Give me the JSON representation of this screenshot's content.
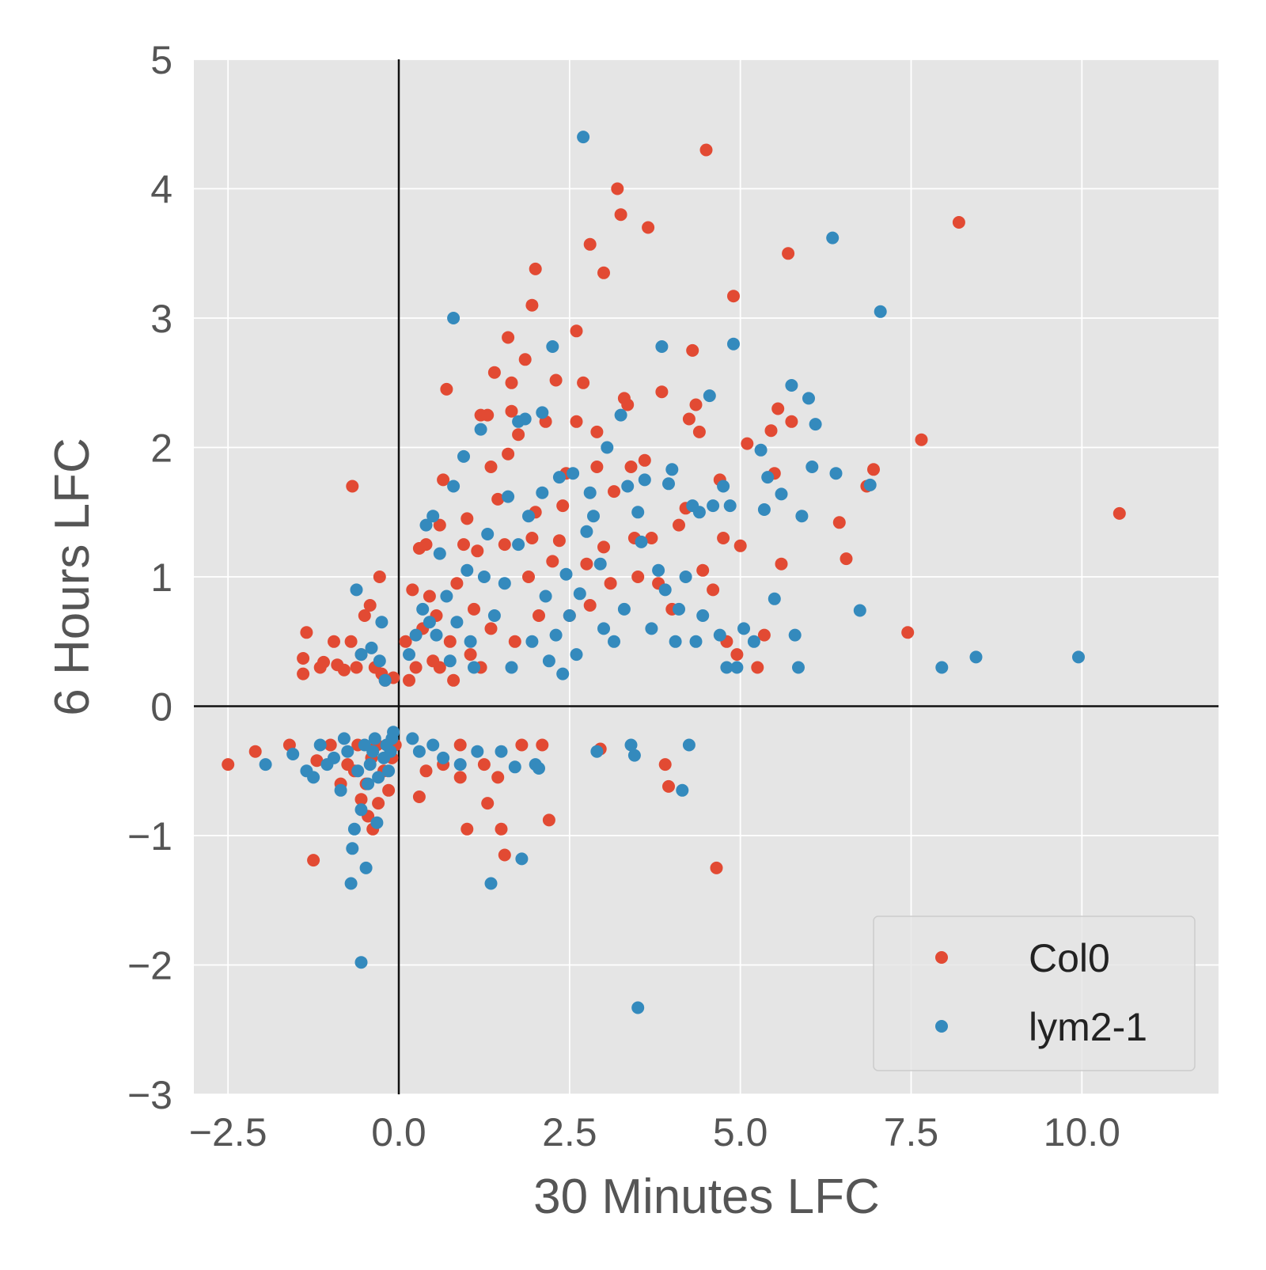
{
  "chart_data": {
    "type": "scatter",
    "xlabel": "30 Minutes LFC",
    "ylabel": "6 Hours LFC",
    "xlim": [
      -3.0,
      12.0
    ],
    "ylim": [
      -3.0,
      5.0
    ],
    "xticks": [
      -2.5,
      0.0,
      2.5,
      5.0,
      7.5,
      10.0
    ],
    "xtick_labels": [
      "−2.5",
      "0.0",
      "2.5",
      "5.0",
      "7.5",
      "10.0"
    ],
    "yticks": [
      -3,
      -2,
      -1,
      0,
      1,
      2,
      3,
      4,
      5
    ],
    "ytick_labels": [
      "−3",
      "−2",
      "−1",
      "0",
      "1",
      "2",
      "3",
      "4",
      "5"
    ],
    "reference_lines": {
      "x": 0,
      "y": 0
    },
    "grid": true,
    "legend_position": "lower-right",
    "series": [
      {
        "name": "Col0",
        "color": "#e24a33",
        "points": [
          [
            -2.5,
            -0.45
          ],
          [
            -2.1,
            -0.35
          ],
          [
            -1.6,
            -0.3
          ],
          [
            -1.4,
            0.25
          ],
          [
            -1.4,
            0.37
          ],
          [
            -1.35,
            0.57
          ],
          [
            -1.25,
            -1.19
          ],
          [
            -1.2,
            -0.42
          ],
          [
            -1.15,
            0.3
          ],
          [
            -1.1,
            0.34
          ],
          [
            -1.0,
            -0.3
          ],
          [
            -0.95,
            0.5
          ],
          [
            -0.9,
            0.32
          ],
          [
            -0.85,
            -0.6
          ],
          [
            -0.8,
            0.28
          ],
          [
            -0.75,
            -0.45
          ],
          [
            -0.7,
            0.5
          ],
          [
            -0.68,
            1.7
          ],
          [
            -0.65,
            -0.5
          ],
          [
            -0.62,
            0.3
          ],
          [
            -0.6,
            -0.3
          ],
          [
            -0.55,
            -0.72
          ],
          [
            -0.55,
            0.4
          ],
          [
            -0.5,
            0.7
          ],
          [
            -0.48,
            -0.6
          ],
          [
            -0.45,
            -0.85
          ],
          [
            -0.42,
            0.78
          ],
          [
            -0.4,
            -0.4
          ],
          [
            -0.38,
            -0.95
          ],
          [
            -0.35,
            0.3
          ],
          [
            -0.32,
            -0.3
          ],
          [
            -0.3,
            -0.75
          ],
          [
            -0.28,
            1.0
          ],
          [
            -0.25,
            0.25
          ],
          [
            -0.22,
            -0.5
          ],
          [
            -0.2,
            0.2
          ],
          [
            -0.15,
            -0.65
          ],
          [
            -0.1,
            -0.4
          ],
          [
            -0.08,
            0.22
          ],
          [
            -0.05,
            -0.3
          ],
          [
            0.1,
            0.5
          ],
          [
            0.15,
            0.2
          ],
          [
            0.2,
            0.9
          ],
          [
            0.25,
            0.3
          ],
          [
            0.3,
            1.22
          ],
          [
            0.3,
            -0.7
          ],
          [
            0.35,
            0.6
          ],
          [
            0.4,
            1.25
          ],
          [
            0.4,
            -0.5
          ],
          [
            0.45,
            0.85
          ],
          [
            0.5,
            0.35
          ],
          [
            0.55,
            0.7
          ],
          [
            0.6,
            1.4
          ],
          [
            0.6,
            0.3
          ],
          [
            0.65,
            1.75
          ],
          [
            0.65,
            -0.45
          ],
          [
            0.7,
            2.45
          ],
          [
            0.75,
            0.5
          ],
          [
            0.8,
            0.2
          ],
          [
            0.85,
            0.95
          ],
          [
            0.9,
            -0.55
          ],
          [
            0.9,
            -0.3
          ],
          [
            0.95,
            1.25
          ],
          [
            1.0,
            -0.95
          ],
          [
            1.0,
            1.45
          ],
          [
            1.05,
            0.4
          ],
          [
            1.1,
            0.75
          ],
          [
            1.15,
            1.2
          ],
          [
            1.2,
            2.25
          ],
          [
            1.2,
            0.3
          ],
          [
            1.25,
            -0.45
          ],
          [
            1.3,
            2.25
          ],
          [
            1.3,
            -0.75
          ],
          [
            1.35,
            1.85
          ],
          [
            1.35,
            0.6
          ],
          [
            1.4,
            2.58
          ],
          [
            1.45,
            1.6
          ],
          [
            1.45,
            -0.55
          ],
          [
            1.5,
            -0.95
          ],
          [
            1.55,
            1.25
          ],
          [
            1.55,
            -1.15
          ],
          [
            1.6,
            2.85
          ],
          [
            1.6,
            1.95
          ],
          [
            1.65,
            2.5
          ],
          [
            1.65,
            2.28
          ],
          [
            1.7,
            0.5
          ],
          [
            1.75,
            2.1
          ],
          [
            1.8,
            -0.3
          ],
          [
            1.85,
            2.68
          ],
          [
            1.9,
            1.0
          ],
          [
            1.95,
            3.1
          ],
          [
            1.95,
            1.3
          ],
          [
            2.0,
            3.38
          ],
          [
            2.0,
            1.5
          ],
          [
            2.05,
            0.7
          ],
          [
            2.1,
            -0.3
          ],
          [
            2.15,
            2.2
          ],
          [
            2.2,
            -0.88
          ],
          [
            2.25,
            1.12
          ],
          [
            2.3,
            2.52
          ],
          [
            2.35,
            1.28
          ],
          [
            2.4,
            1.55
          ],
          [
            2.45,
            1.8
          ],
          [
            2.5,
            0.7
          ],
          [
            2.6,
            2.9
          ],
          [
            2.6,
            2.2
          ],
          [
            2.7,
            2.5
          ],
          [
            2.75,
            1.1
          ],
          [
            2.8,
            3.57
          ],
          [
            2.8,
            0.78
          ],
          [
            2.9,
            1.85
          ],
          [
            2.9,
            2.12
          ],
          [
            2.95,
            -0.33
          ],
          [
            3.0,
            3.35
          ],
          [
            3.0,
            1.23
          ],
          [
            3.1,
            0.95
          ],
          [
            3.15,
            1.66
          ],
          [
            3.2,
            4.0
          ],
          [
            3.25,
            3.8
          ],
          [
            3.3,
            2.38
          ],
          [
            3.35,
            2.33
          ],
          [
            3.4,
            1.85
          ],
          [
            3.45,
            1.3
          ],
          [
            3.5,
            1.0
          ],
          [
            3.6,
            1.9
          ],
          [
            3.65,
            3.7
          ],
          [
            3.7,
            1.3
          ],
          [
            3.8,
            0.95
          ],
          [
            3.85,
            2.43
          ],
          [
            3.9,
            -0.45
          ],
          [
            3.95,
            -0.62
          ],
          [
            4.0,
            0.75
          ],
          [
            4.1,
            1.4
          ],
          [
            4.2,
            1.53
          ],
          [
            4.25,
            2.22
          ],
          [
            4.3,
            2.75
          ],
          [
            4.35,
            2.33
          ],
          [
            4.4,
            2.12
          ],
          [
            4.45,
            1.05
          ],
          [
            4.5,
            4.3
          ],
          [
            4.6,
            0.9
          ],
          [
            4.65,
            -1.25
          ],
          [
            4.7,
            1.75
          ],
          [
            4.75,
            1.3
          ],
          [
            4.8,
            0.5
          ],
          [
            4.9,
            3.17
          ],
          [
            4.95,
            0.4
          ],
          [
            5.0,
            1.24
          ],
          [
            5.1,
            2.03
          ],
          [
            5.25,
            0.3
          ],
          [
            5.35,
            0.55
          ],
          [
            5.45,
            2.13
          ],
          [
            5.5,
            1.8
          ],
          [
            5.55,
            2.3
          ],
          [
            5.6,
            1.1
          ],
          [
            5.7,
            3.5
          ],
          [
            5.75,
            2.2
          ],
          [
            6.45,
            1.42
          ],
          [
            6.55,
            1.14
          ],
          [
            6.85,
            1.7
          ],
          [
            6.95,
            1.83
          ],
          [
            7.45,
            0.57
          ],
          [
            7.65,
            2.06
          ],
          [
            8.2,
            3.74
          ],
          [
            10.55,
            1.49
          ]
        ]
      },
      {
        "name": "lym2-1",
        "color": "#348abd",
        "points": [
          [
            -1.95,
            -0.45
          ],
          [
            -1.55,
            -0.37
          ],
          [
            -1.35,
            -0.5
          ],
          [
            -1.25,
            -0.55
          ],
          [
            -1.15,
            -0.3
          ],
          [
            -1.05,
            -0.45
          ],
          [
            -0.95,
            -0.4
          ],
          [
            -0.85,
            -0.65
          ],
          [
            -0.8,
            -0.25
          ],
          [
            -0.75,
            -0.35
          ],
          [
            -0.7,
            -1.37
          ],
          [
            -0.68,
            -1.1
          ],
          [
            -0.65,
            -0.95
          ],
          [
            -0.62,
            0.9
          ],
          [
            -0.6,
            -0.5
          ],
          [
            -0.55,
            -1.98
          ],
          [
            -0.55,
            -0.8
          ],
          [
            -0.55,
            0.4
          ],
          [
            -0.5,
            -0.3
          ],
          [
            -0.48,
            -1.25
          ],
          [
            -0.45,
            -0.6
          ],
          [
            -0.42,
            -0.45
          ],
          [
            -0.4,
            0.45
          ],
          [
            -0.38,
            -0.35
          ],
          [
            -0.35,
            -0.25
          ],
          [
            -0.32,
            -0.9
          ],
          [
            -0.3,
            -0.55
          ],
          [
            -0.28,
            0.35
          ],
          [
            -0.25,
            0.65
          ],
          [
            -0.22,
            -0.4
          ],
          [
            -0.2,
            0.2
          ],
          [
            -0.18,
            -0.3
          ],
          [
            -0.15,
            -0.5
          ],
          [
            -0.12,
            -0.35
          ],
          [
            -0.1,
            -0.25
          ],
          [
            -0.08,
            -0.2
          ],
          [
            0.15,
            0.4
          ],
          [
            0.2,
            -0.25
          ],
          [
            0.25,
            0.55
          ],
          [
            0.3,
            -0.35
          ],
          [
            0.35,
            0.75
          ],
          [
            0.4,
            1.4
          ],
          [
            0.45,
            0.65
          ],
          [
            0.5,
            1.47
          ],
          [
            0.5,
            -0.3
          ],
          [
            0.55,
            0.55
          ],
          [
            0.6,
            1.18
          ],
          [
            0.65,
            -0.4
          ],
          [
            0.7,
            0.85
          ],
          [
            0.75,
            0.35
          ],
          [
            0.8,
            3.0
          ],
          [
            0.8,
            1.7
          ],
          [
            0.85,
            0.65
          ],
          [
            0.9,
            -0.45
          ],
          [
            0.95,
            1.93
          ],
          [
            1.0,
            1.05
          ],
          [
            1.05,
            0.5
          ],
          [
            1.1,
            0.3
          ],
          [
            1.15,
            -0.35
          ],
          [
            1.2,
            2.14
          ],
          [
            1.25,
            1.0
          ],
          [
            1.3,
            1.33
          ],
          [
            1.35,
            -1.37
          ],
          [
            1.4,
            0.7
          ],
          [
            1.5,
            -0.35
          ],
          [
            1.55,
            0.95
          ],
          [
            1.6,
            1.62
          ],
          [
            1.65,
            0.3
          ],
          [
            1.7,
            -0.47
          ],
          [
            1.75,
            2.2
          ],
          [
            1.75,
            1.25
          ],
          [
            1.8,
            -1.18
          ],
          [
            1.85,
            2.22
          ],
          [
            1.9,
            1.47
          ],
          [
            1.95,
            0.5
          ],
          [
            2.0,
            -0.45
          ],
          [
            2.05,
            -0.48
          ],
          [
            2.1,
            2.27
          ],
          [
            2.1,
            1.65
          ],
          [
            2.15,
            0.85
          ],
          [
            2.2,
            0.35
          ],
          [
            2.25,
            2.78
          ],
          [
            2.3,
            0.55
          ],
          [
            2.35,
            1.77
          ],
          [
            2.4,
            0.25
          ],
          [
            2.45,
            1.02
          ],
          [
            2.5,
            0.7
          ],
          [
            2.55,
            1.8
          ],
          [
            2.6,
            0.4
          ],
          [
            2.65,
            0.87
          ],
          [
            2.7,
            4.4
          ],
          [
            2.75,
            1.35
          ],
          [
            2.8,
            1.65
          ],
          [
            2.85,
            1.47
          ],
          [
            2.9,
            -0.35
          ],
          [
            2.95,
            1.1
          ],
          [
            3.0,
            0.6
          ],
          [
            3.05,
            2.0
          ],
          [
            3.15,
            0.5
          ],
          [
            3.25,
            2.25
          ],
          [
            3.3,
            0.75
          ],
          [
            3.35,
            1.7
          ],
          [
            3.4,
            -0.3
          ],
          [
            3.45,
            -0.38
          ],
          [
            3.5,
            1.5
          ],
          [
            3.5,
            -2.33
          ],
          [
            3.55,
            1.27
          ],
          [
            3.6,
            1.75
          ],
          [
            3.7,
            0.6
          ],
          [
            3.8,
            1.05
          ],
          [
            3.85,
            2.78
          ],
          [
            3.9,
            0.9
          ],
          [
            3.95,
            1.72
          ],
          [
            4.0,
            1.83
          ],
          [
            4.05,
            0.5
          ],
          [
            4.1,
            0.75
          ],
          [
            4.15,
            -0.65
          ],
          [
            4.2,
            1.0
          ],
          [
            4.25,
            -0.3
          ],
          [
            4.3,
            1.55
          ],
          [
            4.35,
            0.5
          ],
          [
            4.4,
            1.5
          ],
          [
            4.45,
            0.7
          ],
          [
            4.55,
            2.4
          ],
          [
            4.6,
            1.55
          ],
          [
            4.7,
            0.55
          ],
          [
            4.75,
            1.7
          ],
          [
            4.8,
            0.3
          ],
          [
            4.85,
            1.55
          ],
          [
            4.9,
            2.8
          ],
          [
            4.95,
            0.3
          ],
          [
            5.05,
            0.6
          ],
          [
            5.2,
            0.5
          ],
          [
            5.3,
            1.98
          ],
          [
            5.35,
            1.52
          ],
          [
            5.4,
            1.77
          ],
          [
            5.5,
            0.83
          ],
          [
            5.6,
            1.64
          ],
          [
            5.75,
            2.48
          ],
          [
            5.8,
            0.55
          ],
          [
            5.85,
            0.3
          ],
          [
            5.9,
            1.47
          ],
          [
            6.0,
            2.38
          ],
          [
            6.05,
            1.85
          ],
          [
            6.1,
            2.18
          ],
          [
            6.35,
            3.62
          ],
          [
            6.4,
            1.8
          ],
          [
            6.75,
            0.74
          ],
          [
            6.9,
            1.71
          ],
          [
            7.05,
            3.05
          ],
          [
            7.95,
            0.3
          ],
          [
            8.45,
            0.38
          ],
          [
            9.95,
            0.38
          ]
        ]
      }
    ]
  }
}
